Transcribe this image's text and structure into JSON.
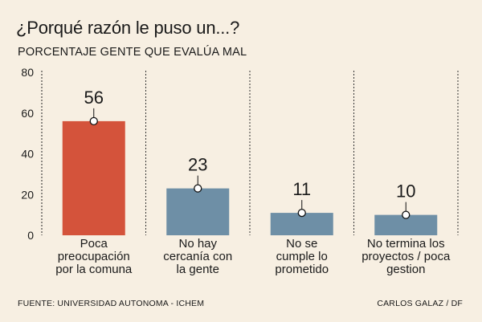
{
  "title": "¿Porqué razón le puso un...?",
  "subtitle": "PORCENTAJE GENTE QUE EVALÚA MAL",
  "footer": {
    "source": "FUENTE: UNIVERSIDAD AUTONOMA - ICHEM",
    "credit": "CARLOS GALAZ / DF"
  },
  "colors": {
    "background": "#f7efe2",
    "highlight_bar": "#d4533b",
    "bar": "#6e8fa6"
  },
  "chart_data": {
    "type": "bar",
    "title": "¿Porqué razón le puso un...?",
    "subtitle": "PORCENTAJE GENTE QUE EVALÚA MAL",
    "categories": [
      "Poca preocupación por la comuna",
      "No hay cercanía con la gente",
      "No se cumple lo prometido",
      "No termina los proyectos / poca gestion"
    ],
    "category_lines": [
      [
        "Poca",
        "preocupación",
        "por la comuna"
      ],
      [
        "No hay",
        "cercanía con",
        "la gente"
      ],
      [
        "No se",
        "cumple lo",
        "prometido"
      ],
      [
        "No termina los",
        "proyectos / poca",
        "gestion"
      ]
    ],
    "values": [
      56,
      23,
      11,
      10
    ],
    "value_labels": [
      "56",
      "23",
      "11",
      "10"
    ],
    "highlight_index": 0,
    "ylim": [
      0,
      80
    ],
    "yticks": [
      0,
      20,
      40,
      60,
      80
    ],
    "ytick_labels": [
      "0",
      "20",
      "40",
      "60",
      "80"
    ],
    "grid": false,
    "dashed_separators": true
  }
}
